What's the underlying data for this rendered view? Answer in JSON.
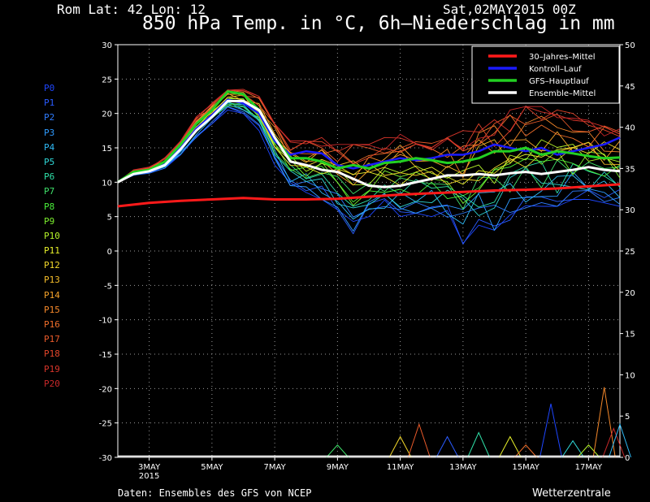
{
  "header": {
    "location": "Rom   Lat: 42 Lon: 12",
    "run": "Sat,02MAY2015 00Z",
    "title": "850 hPa Temp. in °C, 6h–Niederschlag in mm"
  },
  "footer": {
    "source": "Daten: Ensembles des GFS von NCEP",
    "brand": "Wetterzentrale"
  },
  "members": [
    {
      "label": "P0",
      "color": "#1e46ff"
    },
    {
      "label": "P1",
      "color": "#2a5bff"
    },
    {
      "label": "P2",
      "color": "#2f7cff"
    },
    {
      "label": "P3",
      "color": "#2f9bff"
    },
    {
      "label": "P4",
      "color": "#2fbaf5"
    },
    {
      "label": "P5",
      "color": "#2fd6d6"
    },
    {
      "label": "P6",
      "color": "#2fe0a8"
    },
    {
      "label": "P7",
      "color": "#3fe06a"
    },
    {
      "label": "P8",
      "color": "#49ef3a"
    },
    {
      "label": "P9",
      "color": "#7cf02e"
    },
    {
      "label": "P10",
      "color": "#b6f42a"
    },
    {
      "label": "P11",
      "color": "#e7f02a"
    },
    {
      "label": "P12",
      "color": "#f3d82a"
    },
    {
      "label": "P13",
      "color": "#f5bd2a"
    },
    {
      "label": "P14",
      "color": "#f5a22a"
    },
    {
      "label": "P15",
      "color": "#f5882a"
    },
    {
      "label": "P16",
      "color": "#f06e2a"
    },
    {
      "label": "P17",
      "color": "#ea5a2a"
    },
    {
      "label": "P18",
      "color": "#e2452a"
    },
    {
      "label": "P19",
      "color": "#d8352a"
    },
    {
      "label": "P20",
      "color": "#c9282a"
    }
  ],
  "chart_data": {
    "type": "line",
    "x_tick_labels": [
      {
        "day": 1,
        "label": "3MAY",
        "sub": "2015"
      },
      {
        "day": 3,
        "label": "5MAY",
        "sub": ""
      },
      {
        "day": 5,
        "label": "7MAY",
        "sub": ""
      },
      {
        "day": 7,
        "label": "9MAY",
        "sub": ""
      },
      {
        "day": 9,
        "label": "11MAY",
        "sub": ""
      },
      {
        "day": 11,
        "label": "13MAY",
        "sub": ""
      },
      {
        "day": 13,
        "label": "15MAY",
        "sub": ""
      },
      {
        "day": 15,
        "label": "17MAY",
        "sub": ""
      }
    ],
    "x_range_days": [
      0,
      16
    ],
    "y_left": {
      "min": -30,
      "max": 30,
      "ticks": [
        30,
        25,
        20,
        15,
        10,
        5,
        0,
        -5,
        -10,
        -15,
        -20,
        -25,
        -30
      ]
    },
    "y_right": {
      "min": 0,
      "max": 50,
      "ticks": [
        50,
        45,
        40,
        35,
        30,
        25,
        20,
        15,
        10,
        5,
        0
      ]
    },
    "grid": true,
    "legend": "top-right",
    "legend_entries": [
      {
        "label": "30–Jahres–Mittel",
        "color": "#ff1a1a"
      },
      {
        "label": "Kontroll–Lauf",
        "color": "#1a1aff"
      },
      {
        "label": "GFS–Hauptlauf",
        "color": "#22d022"
      },
      {
        "label": "Ensemble–Mittel",
        "color": "#ffffff"
      }
    ],
    "climate_mean": {
      "x": [
        0,
        1,
        2,
        3,
        4,
        5,
        6,
        7,
        8,
        9,
        10,
        11,
        12,
        13,
        14,
        15,
        16
      ],
      "y": [
        6.5,
        7.0,
        7.3,
        7.5,
        7.7,
        7.5,
        7.5,
        7.6,
        7.9,
        8.2,
        8.4,
        8.6,
        8.8,
        8.9,
        9.1,
        9.4,
        9.7
      ]
    },
    "ensemble_mean": {
      "x": [
        0,
        0.5,
        1,
        1.5,
        2,
        2.5,
        3,
        3.5,
        4,
        4.5,
        5,
        5.5,
        6,
        6.5,
        7,
        7.5,
        8,
        8.5,
        9,
        9.5,
        10,
        10.5,
        11,
        11.5,
        12,
        12.5,
        13,
        13.5,
        14,
        14.5,
        15,
        15.5,
        16
      ],
      "y": [
        10,
        11.2,
        11.6,
        12.5,
        14.8,
        17.5,
        19.5,
        21.8,
        21.8,
        20.5,
        16.5,
        13.0,
        12.5,
        11.8,
        11.5,
        10.5,
        9.5,
        9.3,
        9.5,
        10.0,
        10.5,
        11.0,
        11.0,
        11.2,
        11.0,
        11.3,
        11.5,
        11.2,
        11.5,
        11.8,
        12.2,
        11.8,
        11.6
      ]
    },
    "control_run": {
      "x": [
        0,
        0.5,
        1,
        1.5,
        2,
        2.5,
        3,
        3.5,
        4,
        4.5,
        5,
        5.5,
        6,
        6.5,
        7,
        7.5,
        8,
        8.5,
        9,
        9.5,
        10,
        10.5,
        11,
        11.5,
        12,
        12.5,
        13,
        13.5,
        14,
        14.5,
        15,
        15.5,
        16
      ],
      "y": [
        10,
        11.3,
        11.7,
        12.7,
        15.0,
        17.8,
        19.8,
        22.0,
        21.5,
        20.0,
        16.0,
        14.0,
        14.5,
        14.2,
        12.5,
        12.0,
        12.5,
        13.0,
        13.5,
        13.2,
        13.5,
        14.0,
        14.0,
        14.5,
        15.5,
        15.0,
        14.5,
        15.0,
        14.0,
        14.5,
        15.0,
        15.5,
        16.5
      ]
    },
    "main_run": {
      "x": [
        0,
        0.5,
        1,
        1.5,
        2,
        2.5,
        3,
        3.5,
        4,
        4.5,
        5,
        5.5,
        6,
        6.5,
        7,
        7.5,
        8,
        8.5,
        9,
        9.5,
        10,
        10.5,
        11,
        11.5,
        12,
        12.5,
        13,
        13.5,
        14,
        14.5,
        15,
        15.5,
        16
      ],
      "y": [
        10,
        11.5,
        11.8,
        13.0,
        15.5,
        18.5,
        20.5,
        23.2,
        22.8,
        20.5,
        16.5,
        13.5,
        13.5,
        13.0,
        12.0,
        12.5,
        12.0,
        12.8,
        13.0,
        13.5,
        13.2,
        12.8,
        13.0,
        13.5,
        14.5,
        14.5,
        15.0,
        14.0,
        14.5,
        14.2,
        13.8,
        13.5,
        13.6
      ]
    },
    "member_spread": {
      "x": [
        0,
        0.5,
        1,
        1.5,
        2,
        2.5,
        3,
        3.5,
        4,
        4.5,
        5,
        5.5,
        6,
        6.5,
        7,
        7.5,
        8,
        8.5,
        9,
        9.5,
        10,
        10.5,
        11,
        11.5,
        12,
        12.5,
        13,
        13.5,
        14,
        14.5,
        15,
        15.5,
        16
      ],
      "min": [
        10,
        11.0,
        11.3,
        12.0,
        14.0,
        16.5,
        18.5,
        20.5,
        20.0,
        17.5,
        12.5,
        9.5,
        8.5,
        7.5,
        6.0,
        2.5,
        5.0,
        5.5,
        5.0,
        5.5,
        5.0,
        4.0,
        1.0,
        3.5,
        3.0,
        4.5,
        5.5,
        6.5,
        6.5,
        7.5,
        7.5,
        7.0,
        6.5
      ],
      "max": [
        10,
        11.8,
        12.2,
        13.6,
        16.0,
        19.5,
        21.5,
        23.8,
        23.5,
        22.5,
        18.5,
        16.0,
        16.0,
        16.5,
        15.5,
        15.5,
        15.5,
        16.5,
        17.0,
        16.5,
        16.0,
        16.5,
        17.5,
        18.5,
        19.5,
        20.5,
        21.0,
        21.0,
        20.5,
        20.0,
        19.0,
        18.5,
        18.0
      ]
    },
    "precip_peaks": {
      "x": [
        7.0,
        9.0,
        9.6,
        10.5,
        11.5,
        12.5,
        13.0,
        13.8,
        14.5,
        15.0,
        15.5,
        15.8,
        16.0
      ],
      "mm": [
        1.5,
        2.5,
        4.0,
        2.5,
        3.0,
        2.5,
        1.5,
        6.5,
        2.0,
        1.5,
        8.5,
        3.5,
        4.0
      ]
    }
  }
}
